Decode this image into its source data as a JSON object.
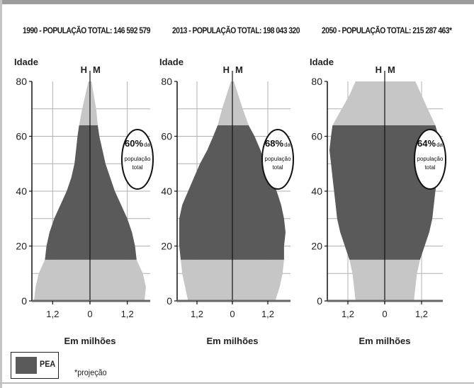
{
  "chart_data": [
    {
      "type": "area",
      "subtype": "population-pyramid",
      "title": "1990 - POPULAÇÃO TOTAL: 146 592 579",
      "ylabel": "Idade",
      "xlabel": "Em milhões",
      "left_label": "H",
      "right_label": "M",
      "ylim": [
        0,
        80
      ],
      "y_ticks": [
        "0",
        "20",
        "40",
        "60",
        "80"
      ],
      "xlim": [
        -1.8,
        1.8
      ],
      "x_ticks": [
        "1,2",
        "0",
        "1,2"
      ],
      "pea_band": [
        15,
        64
      ],
      "annotation": {
        "pct": "60%",
        "lines": [
          "da",
          "população",
          "total"
        ]
      },
      "ages": [
        0,
        5,
        10,
        15,
        20,
        25,
        30,
        35,
        40,
        45,
        50,
        55,
        60,
        64,
        70,
        75,
        80
      ],
      "men": [
        1.8,
        1.75,
        1.65,
        1.45,
        1.4,
        1.3,
        1.15,
        0.95,
        0.75,
        0.6,
        0.5,
        0.45,
        0.4,
        0.35,
        0.25,
        0.15,
        0.05
      ],
      "women": [
        1.75,
        1.8,
        1.7,
        1.5,
        1.45,
        1.35,
        1.2,
        1.0,
        0.8,
        0.65,
        0.5,
        0.4,
        0.3,
        0.25,
        0.2,
        0.12,
        0.05
      ]
    },
    {
      "type": "area",
      "subtype": "population-pyramid",
      "title": "2013 - POPULAÇÃO TOTAL: 198 043 320",
      "ylabel": "Idade",
      "xlabel": "Em milhões",
      "left_label": "H",
      "right_label": "M",
      "ylim": [
        0,
        80
      ],
      "y_ticks": [
        "0",
        "20",
        "40",
        "60",
        "80"
      ],
      "xlim": [
        -1.8,
        1.8
      ],
      "x_ticks": [
        "1,2",
        "0",
        "1,2"
      ],
      "pea_band": [
        15,
        64
      ],
      "annotation": {
        "pct": "68%",
        "lines": [
          "da",
          "população",
          "total"
        ]
      },
      "ages": [
        0,
        5,
        10,
        15,
        20,
        25,
        30,
        35,
        40,
        45,
        50,
        55,
        60,
        64,
        70,
        75,
        80
      ],
      "men": [
        1.5,
        1.6,
        1.7,
        1.75,
        1.8,
        1.8,
        1.8,
        1.7,
        1.5,
        1.3,
        1.1,
        0.85,
        0.65,
        0.5,
        0.35,
        0.2,
        0.05
      ],
      "women": [
        1.45,
        1.6,
        1.7,
        1.75,
        1.75,
        1.8,
        1.75,
        1.65,
        1.5,
        1.3,
        1.1,
        0.95,
        0.75,
        0.55,
        0.35,
        0.2,
        0.05
      ]
    },
    {
      "type": "area",
      "subtype": "population-pyramid",
      "title": "2050 - POPULAÇÃO TOTAL: 215 287 463*",
      "ylabel": "Idade",
      "xlabel": "Em milhões",
      "left_label": "H",
      "right_label": "M",
      "ylim": [
        0,
        80
      ],
      "y_ticks": [
        "0",
        "20",
        "40",
        "60",
        "80"
      ],
      "xlim": [
        -1.8,
        1.8
      ],
      "x_ticks": [
        "1,2",
        "0",
        "1,2"
      ],
      "pea_band": [
        15,
        64
      ],
      "annotation": {
        "pct": "64%",
        "lines": [
          "da",
          "população",
          "total"
        ]
      },
      "ages": [
        0,
        5,
        10,
        15,
        20,
        25,
        30,
        35,
        40,
        45,
        50,
        55,
        60,
        64,
        70,
        75,
        80
      ],
      "men": [
        0.95,
        1.0,
        1.05,
        1.15,
        1.3,
        1.45,
        1.55,
        1.6,
        1.65,
        1.7,
        1.75,
        1.8,
        1.75,
        1.7,
        1.4,
        1.15,
        0.95
      ],
      "women": [
        0.95,
        1.0,
        1.05,
        1.15,
        1.3,
        1.45,
        1.55,
        1.6,
        1.65,
        1.7,
        1.75,
        1.8,
        1.75,
        1.65,
        1.4,
        1.2,
        1.0
      ]
    }
  ],
  "colors": {
    "pea": "#5a5a5a",
    "other": "#c6c6c6",
    "grid": "#b0b0b0",
    "axis": "#111111"
  },
  "legend": {
    "label": "PEA"
  },
  "footnote": "*projeção"
}
